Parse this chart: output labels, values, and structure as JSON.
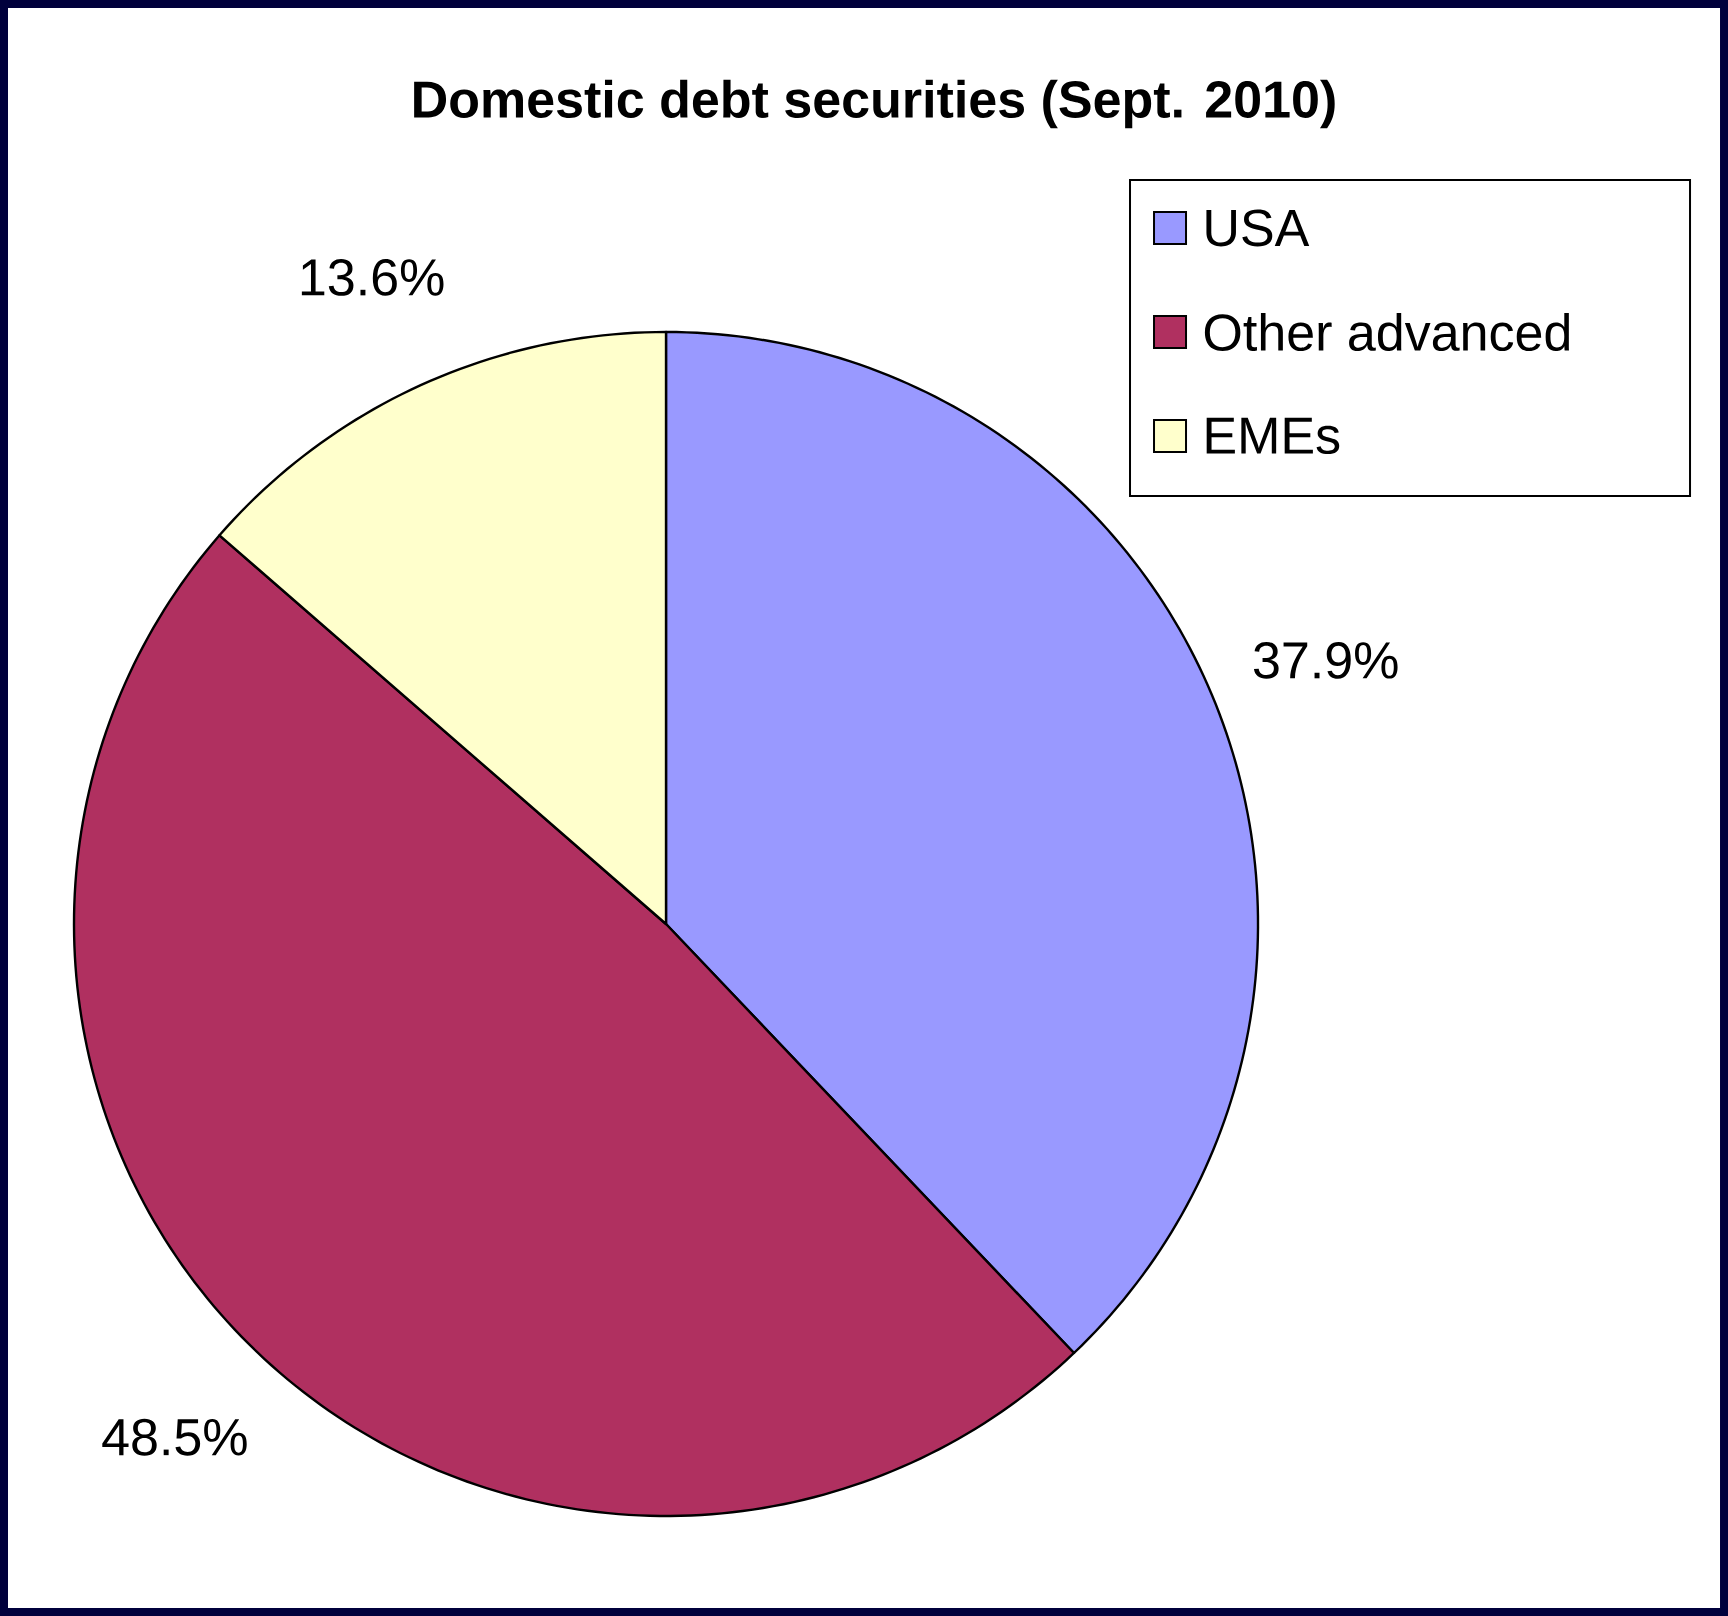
{
  "chart_data": {
    "type": "pie",
    "title": "Domestic debt securities (Sept. 2010)",
    "categories": [
      "USA",
      "Other advanced",
      "EMEs"
    ],
    "values": [
      37.9,
      48.5,
      13.6
    ],
    "colors": [
      "#9999ff",
      "#b03060",
      "#ffffcc"
    ],
    "value_labels": [
      "37.9%",
      "48.5%",
      "13.6%"
    ],
    "legend": "top right"
  }
}
